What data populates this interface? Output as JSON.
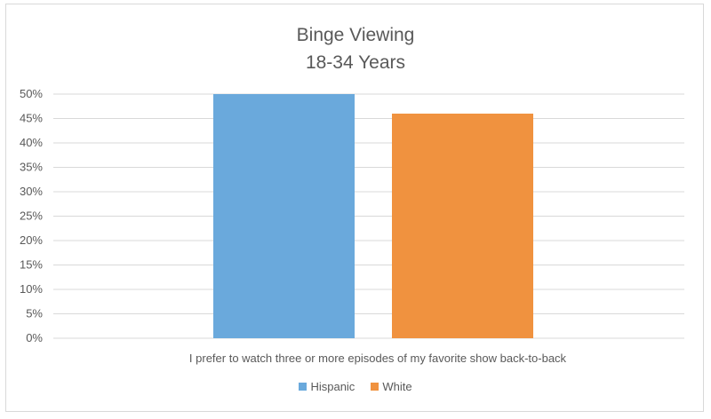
{
  "chart_data": {
    "type": "bar",
    "title": "Binge Viewing",
    "subtitle": "18-34 Years",
    "categories": [
      "I prefer to watch three or more episodes of my favorite show back-to-back"
    ],
    "series": [
      {
        "name": "Hispanic",
        "values": [
          50
        ],
        "color": "#6aa9dc"
      },
      {
        "name": "White",
        "values": [
          46
        ],
        "color": "#f0923f"
      }
    ],
    "ylim": [
      0,
      50
    ],
    "yticks": [
      "0%",
      "5%",
      "10%",
      "15%",
      "20%",
      "25%",
      "30%",
      "35%",
      "40%",
      "45%",
      "50%"
    ],
    "grid": true,
    "legend_position": "bottom",
    "gridline_color": "#d9d9d9"
  }
}
